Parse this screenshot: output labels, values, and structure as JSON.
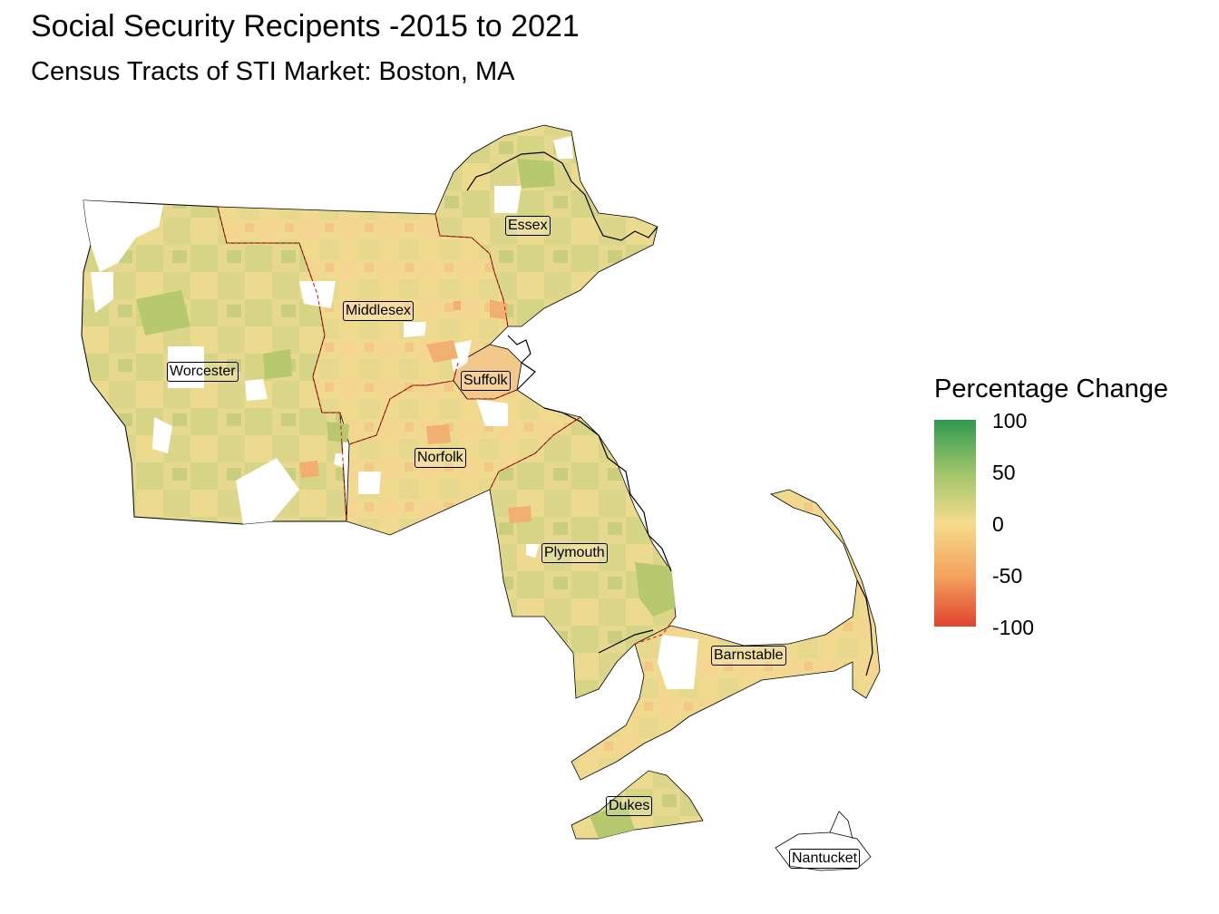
{
  "title": "Social Security Recipents -2015 to 2021",
  "subtitle": "Census Tracts of STI Market: Boston, MA",
  "legend": {
    "title": "Percentage Change",
    "min": -100,
    "max": 100,
    "ticks": [
      "100",
      "50",
      "0",
      "-50",
      "-100"
    ],
    "colors": {
      "high": "#2e9a4f",
      "mid_high": "#9cc46a",
      "mid": "#f5dc8c",
      "mid_low": "#f4a45e",
      "low": "#e0442e"
    }
  },
  "counties": [
    {
      "id": "essex",
      "label": "Essex"
    },
    {
      "id": "middlesex",
      "label": "Middlesex"
    },
    {
      "id": "worcester",
      "label": "Worcester"
    },
    {
      "id": "suffolk",
      "label": "Suffolk"
    },
    {
      "id": "norfolk",
      "label": "Norfolk"
    },
    {
      "id": "plymouth",
      "label": "Plymouth"
    },
    {
      "id": "barnstable",
      "label": "Barnstable"
    },
    {
      "id": "dukes",
      "label": "Dukes"
    },
    {
      "id": "nantucket",
      "label": "Nantucket"
    }
  ]
}
